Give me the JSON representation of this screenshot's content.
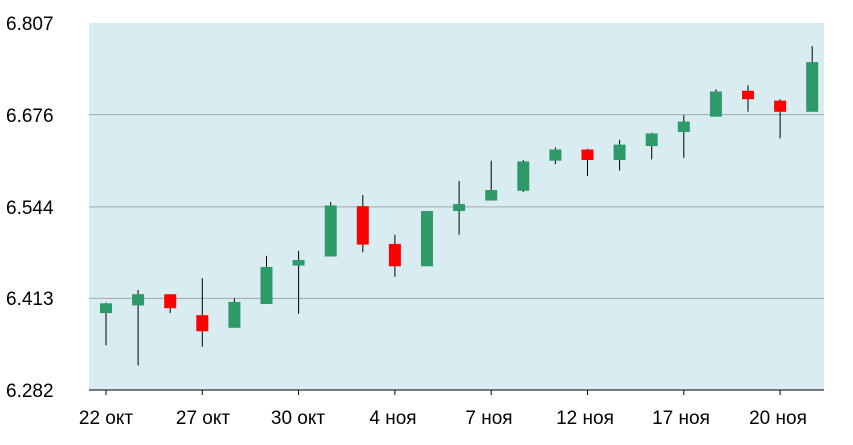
{
  "chart_data": {
    "type": "candlestick",
    "title": "",
    "xlabel": "",
    "ylabel": "",
    "ylim": [
      6.282,
      6.807
    ],
    "yticks": [
      "6.807",
      "6.676",
      "6.544",
      "6.413",
      "6.282"
    ],
    "xtick_labels": [
      "22 окт",
      "27 окт",
      "30 окт",
      "4 ноя",
      "7 ноя",
      "12 ноя",
      "17 ноя",
      "20 ноя"
    ],
    "xtick_candle_index": [
      0,
      3,
      6,
      9,
      12,
      15,
      18,
      21
    ],
    "grid": true,
    "colors": {
      "up": "#2e9a6a",
      "down": "#ff0000",
      "wick": "#000000",
      "plot_background": "#d9ecf1",
      "gridline": "#a0a8ac",
      "axis": "#000000"
    },
    "candles": [
      {
        "open": 6.392,
        "high": 6.407,
        "low": 6.346,
        "close": 6.406
      },
      {
        "open": 6.403,
        "high": 6.425,
        "low": 6.317,
        "close": 6.419
      },
      {
        "open": 6.419,
        "high": 6.419,
        "low": 6.392,
        "close": 6.399
      },
      {
        "open": 6.389,
        "high": 6.442,
        "low": 6.344,
        "close": 6.366
      },
      {
        "open": 6.371,
        "high": 6.413,
        "low": 6.371,
        "close": 6.408
      },
      {
        "open": 6.405,
        "high": 6.474,
        "low": 6.405,
        "close": 6.458
      },
      {
        "open": 6.46,
        "high": 6.481,
        "low": 6.391,
        "close": 6.468
      },
      {
        "open": 6.473,
        "high": 6.551,
        "low": 6.473,
        "close": 6.546
      },
      {
        "open": 6.545,
        "high": 6.561,
        "low": 6.479,
        "close": 6.49
      },
      {
        "open": 6.491,
        "high": 6.504,
        "low": 6.444,
        "close": 6.459
      },
      {
        "open": 6.459,
        "high": 6.538,
        "low": 6.459,
        "close": 6.538
      },
      {
        "open": 6.538,
        "high": 6.581,
        "low": 6.504,
        "close": 6.548
      },
      {
        "open": 6.553,
        "high": 6.61,
        "low": 6.553,
        "close": 6.568
      },
      {
        "open": 6.567,
        "high": 6.611,
        "low": 6.565,
        "close": 6.609
      },
      {
        "open": 6.61,
        "high": 6.629,
        "low": 6.605,
        "close": 6.626
      },
      {
        "open": 6.626,
        "high": 6.627,
        "low": 6.588,
        "close": 6.611
      },
      {
        "open": 6.611,
        "high": 6.64,
        "low": 6.596,
        "close": 6.633
      },
      {
        "open": 6.631,
        "high": 6.65,
        "low": 6.612,
        "close": 6.649
      },
      {
        "open": 6.651,
        "high": 6.675,
        "low": 6.614,
        "close": 6.666
      },
      {
        "open": 6.673,
        "high": 6.712,
        "low": 6.673,
        "close": 6.709
      },
      {
        "open": 6.71,
        "high": 6.718,
        "low": 6.68,
        "close": 6.698
      },
      {
        "open": 6.696,
        "high": 6.698,
        "low": 6.642,
        "close": 6.68
      },
      {
        "open": 6.68,
        "high": 6.774,
        "low": 6.68,
        "close": 6.751
      }
    ]
  }
}
